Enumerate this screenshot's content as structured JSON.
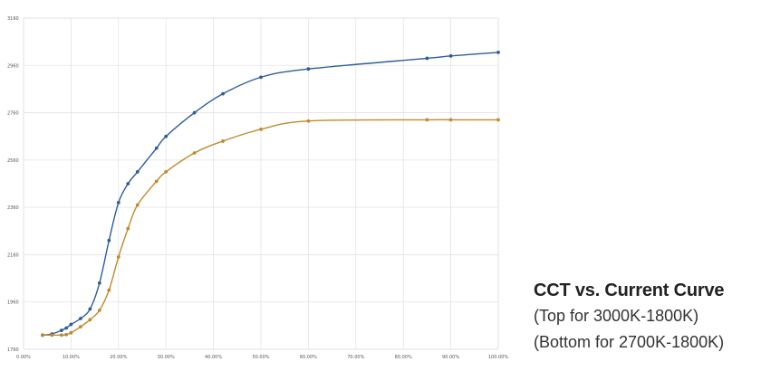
{
  "chart_data": {
    "type": "line",
    "x_tick_labels": [
      "0.00%",
      "10.00%",
      "20.00%",
      "30.00%",
      "40.00%",
      "50.00%",
      "60.00%",
      "70.00%",
      "80.00%",
      "90.00%",
      "100.00%"
    ],
    "y_tick_labels": [
      "1760",
      "1960",
      "2160",
      "2360",
      "2560",
      "2760",
      "2960",
      "3160"
    ],
    "xlim": [
      0,
      100
    ],
    "ylim": [
      1760,
      3160
    ],
    "grid": true,
    "legend": "none",
    "series": [
      {
        "color": "#2e5d9a",
        "x": [
          4,
          6,
          8,
          9,
          10,
          12,
          14,
          16,
          18,
          20,
          22,
          24,
          28,
          30,
          36,
          42,
          50,
          60,
          85,
          90,
          100
        ],
        "y": [
          1820,
          1825,
          1840,
          1850,
          1865,
          1890,
          1930,
          2040,
          2220,
          2380,
          2460,
          2510,
          2610,
          2660,
          2760,
          2840,
          2910,
          2945,
          2990,
          3000,
          3015
        ]
      },
      {
        "color": "#c08a2c",
        "x": [
          4,
          6,
          8,
          9,
          10,
          12,
          14,
          16,
          18,
          20,
          22,
          24,
          28,
          30,
          36,
          42,
          50,
          60,
          85,
          90,
          100
        ],
        "y": [
          1820,
          1820,
          1820,
          1822,
          1830,
          1855,
          1885,
          1925,
          2010,
          2150,
          2270,
          2370,
          2470,
          2510,
          2590,
          2640,
          2690,
          2725,
          2730,
          2730,
          2730
        ]
      }
    ]
  },
  "caption": {
    "title": "CCT vs. Current Curve",
    "line1": "(Top for 3000K-1800K)",
    "line2": "(Bottom for 2700K-1800K)"
  }
}
